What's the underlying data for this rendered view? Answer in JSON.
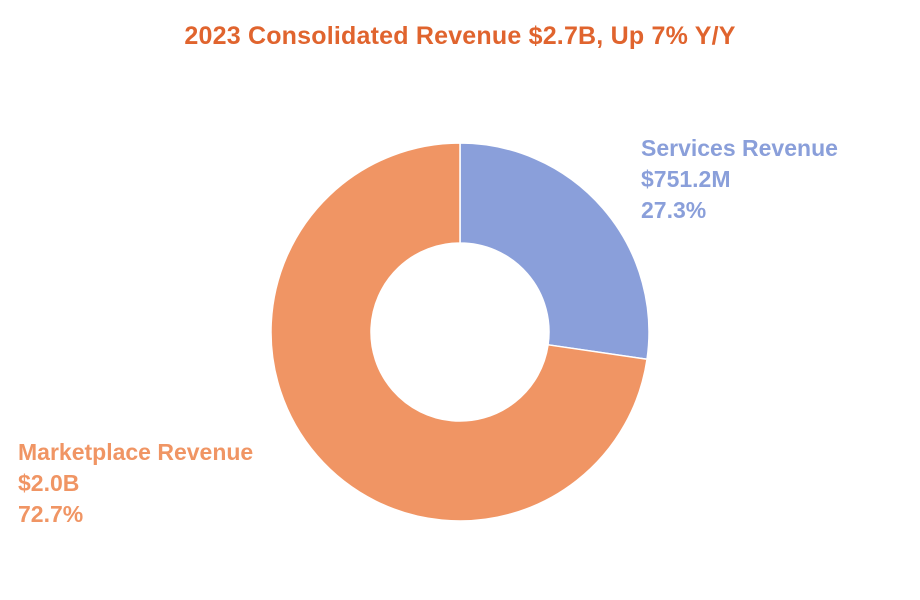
{
  "chart_data": {
    "type": "pie",
    "variant": "donut",
    "title": "2023 Consolidated Revenue $2.7B, Up 7% Y/Y",
    "title_color": "#E0642E",
    "slices": [
      {
        "name": "Services Revenue",
        "value_label": "$751.2M",
        "percent_label": "27.3%",
        "percent": 27.3,
        "color": "#8A9FDA"
      },
      {
        "name": "Marketplace Revenue",
        "value_label": "$2.0B",
        "percent_label": "72.7%",
        "percent": 72.7,
        "color": "#F09564"
      }
    ],
    "legend": "none"
  }
}
